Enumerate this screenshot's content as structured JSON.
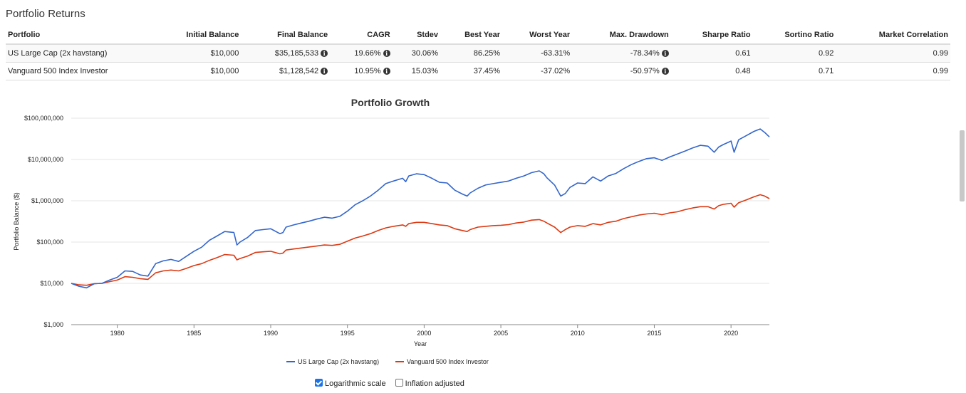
{
  "section_title": "Portfolio Returns",
  "table": {
    "headers": [
      "Portfolio",
      "Initial Balance",
      "Final Balance",
      "CAGR",
      "Stdev",
      "Best Year",
      "Worst Year",
      "Max. Drawdown",
      "Sharpe Ratio",
      "Sortino Ratio",
      "Market Correlation"
    ],
    "rows": [
      {
        "portfolio": "US Large Cap (2x havstang)",
        "initial": "$10,000",
        "final": "$35,185,533",
        "cagr": "19.66%",
        "stdev": "30.06%",
        "best": "86.25%",
        "worst": "-63.31%",
        "drawdown": "-78.34%",
        "sharpe": "0.61",
        "sortino": "0.92",
        "corr": "0.99"
      },
      {
        "portfolio": "Vanguard 500 Index Investor",
        "initial": "$10,000",
        "final": "$1,128,542",
        "cagr": "10.95%",
        "stdev": "15.03%",
        "best": "37.45%",
        "worst": "-37.02%",
        "drawdown": "-50.97%",
        "sharpe": "0.48",
        "sortino": "0.71",
        "corr": "0.99"
      }
    ]
  },
  "controls": {
    "log_label": "Logarithmic scale",
    "log_checked": true,
    "inflation_label": "Inflation adjusted",
    "inflation_checked": false
  },
  "chart_data": {
    "type": "line",
    "title": "Portfolio Growth",
    "xlabel": "Year",
    "ylabel": "Portfolio Balance ($)",
    "yscale": "log",
    "xlim": [
      1977,
      2022.5
    ],
    "ylim": [
      1000,
      100000000
    ],
    "x_ticks": [
      "1980",
      "1985",
      "1990",
      "1995",
      "2000",
      "2005",
      "2010",
      "2015",
      "2020"
    ],
    "y_ticks": [
      "$1,000",
      "$10,000",
      "$100,000",
      "$1,000,000",
      "$10,000,000",
      "$100,000,000"
    ],
    "y_tick_values": [
      1000,
      10000,
      100000,
      1000000,
      10000000,
      100000000
    ],
    "grid": true,
    "legend_position": "bottom",
    "x": [
      1977,
      1977.5,
      1978,
      1978.5,
      1979,
      1979.5,
      1980,
      1980.5,
      1981,
      1981.5,
      1982,
      1982.5,
      1983,
      1983.5,
      1984,
      1984.5,
      1985,
      1985.5,
      1986,
      1986.5,
      1987,
      1987.6,
      1987.8,
      1988,
      1988.5,
      1989,
      1989.5,
      1990,
      1990.6,
      1990.8,
      1991,
      1991.5,
      1992,
      1992.5,
      1993,
      1993.5,
      1994,
      1994.5,
      1995,
      1995.5,
      1996,
      1996.5,
      1997,
      1997.5,
      1998,
      1998.6,
      1998.8,
      1999,
      1999.5,
      2000,
      2000.5,
      2001,
      2001.5,
      2002,
      2002.5,
      2002.8,
      2003,
      2003.5,
      2004,
      2004.5,
      2005,
      2005.5,
      2006,
      2006.5,
      2007,
      2007.5,
      2007.8,
      2008,
      2008.5,
      2008.9,
      2009.2,
      2009.5,
      2010,
      2010.5,
      2011,
      2011.5,
      2012,
      2012.5,
      2013,
      2013.5,
      2014,
      2014.5,
      2015,
      2015.5,
      2016,
      2016.5,
      2017,
      2017.5,
      2018,
      2018.5,
      2018.9,
      2019.2,
      2019.5,
      2020,
      2020.2,
      2020.5,
      2021,
      2021.5,
      2021.9,
      2022.2,
      2022.5
    ],
    "series": [
      {
        "name": "US Large Cap (2x havstang)",
        "color": "#3366cc",
        "values": [
          10000,
          8500,
          7800,
          9800,
          10000,
          12000,
          14000,
          20000,
          19500,
          16000,
          15000,
          30000,
          35000,
          38000,
          34000,
          45000,
          60000,
          75000,
          110000,
          140000,
          180000,
          170000,
          85000,
          100000,
          130000,
          190000,
          200000,
          210000,
          160000,
          170000,
          230000,
          260000,
          290000,
          320000,
          360000,
          400000,
          380000,
          420000,
          560000,
          800000,
          1000000,
          1300000,
          1800000,
          2600000,
          3000000,
          3500000,
          2900000,
          4000000,
          4500000,
          4300000,
          3500000,
          2800000,
          2700000,
          1800000,
          1450000,
          1300000,
          1550000,
          2000000,
          2400000,
          2600000,
          2800000,
          3000000,
          3500000,
          4000000,
          4800000,
          5300000,
          4500000,
          3600000,
          2400000,
          1300000,
          1500000,
          2100000,
          2700000,
          2600000,
          3800000,
          3000000,
          4000000,
          4600000,
          6000000,
          7500000,
          9000000,
          10500000,
          11000000,
          9500000,
          11500000,
          13500000,
          16000000,
          19000000,
          22000000,
          21000000,
          15000000,
          20000000,
          23000000,
          28000000,
          15000000,
          30000000,
          38000000,
          48000000,
          55000000,
          45000000,
          35185533
        ]
      },
      {
        "name": "Vanguard 500 Index Investor",
        "color": "#dc3912",
        "values": [
          10000,
          9200,
          9000,
          9800,
          10000,
          11000,
          12000,
          14500,
          14000,
          13000,
          12500,
          18000,
          20000,
          21000,
          20000,
          23000,
          27000,
          30000,
          36000,
          42000,
          50000,
          48000,
          37000,
          40000,
          46000,
          56000,
          58000,
          60000,
          52000,
          54000,
          64000,
          68000,
          72000,
          76000,
          80000,
          85000,
          83000,
          88000,
          105000,
          125000,
          140000,
          160000,
          190000,
          220000,
          240000,
          260000,
          240000,
          280000,
          300000,
          300000,
          280000,
          260000,
          250000,
          210000,
          190000,
          180000,
          200000,
          230000,
          240000,
          250000,
          255000,
          265000,
          290000,
          305000,
          340000,
          350000,
          320000,
          290000,
          230000,
          170000,
          200000,
          230000,
          250000,
          240000,
          280000,
          260000,
          300000,
          320000,
          370000,
          410000,
          450000,
          480000,
          500000,
          460000,
          510000,
          540000,
          610000,
          670000,
          720000,
          720000,
          630000,
          760000,
          820000,
          870000,
          700000,
          900000,
          1050000,
          1250000,
          1400000,
          1300000,
          1128542
        ]
      }
    ]
  }
}
